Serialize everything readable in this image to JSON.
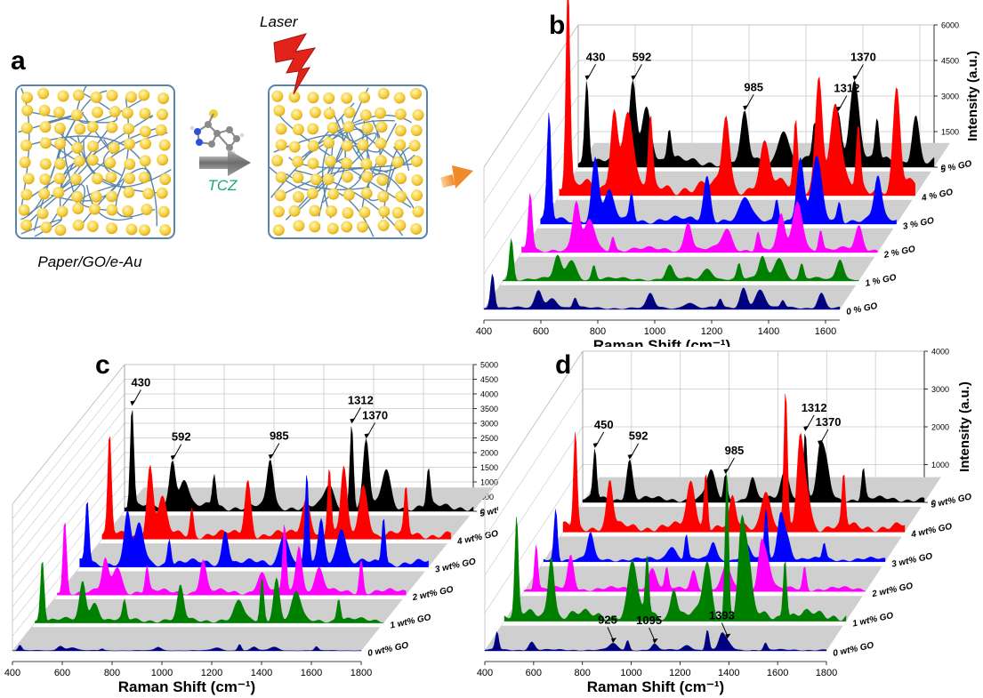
{
  "panel_a": {
    "letter": "a",
    "reagent_label": "TCZ",
    "laser_label": "Laser",
    "substrate_label": "Paper/GO/e-Au",
    "colors": {
      "fiber": "#5a84a9",
      "gold": "#f5cd3a",
      "tcz_label": "#19a866",
      "laser": "#e2231a",
      "arrow": "#7d7d7d",
      "arrow_out": "#f0a04b"
    }
  },
  "panels": {
    "b": {
      "letter": "b",
      "xlabel": "Raman Shift (cm⁻¹)",
      "ylabel": "Intensity (a.u.)"
    },
    "c": {
      "letter": "c",
      "xlabel": "Raman Shift (cm⁻¹)",
      "ylabel": "Intensity (a.u.)"
    },
    "d": {
      "letter": "d",
      "xlabel": "Raman Shift (cm⁻¹)",
      "ylabel": "Intensity (a.u.)"
    }
  },
  "chart_data": [
    {
      "panel": "b",
      "type": "area",
      "title": "",
      "xlabel": "Raman Shift (cm⁻¹)",
      "ylabel": "Intensity (a.u.)",
      "xlim": [
        400,
        1650
      ],
      "x_ticks": [
        400,
        600,
        800,
        1000,
        1200,
        1400,
        1600
      ],
      "ylim": [
        0,
        6000
      ],
      "y_ticks": [
        0,
        1500,
        3000,
        4500,
        6000
      ],
      "series_labels": [
        "5 % GO",
        "4 % GO",
        "3 % GO",
        "2 % GO",
        "1 % GO",
        "0 % GO"
      ],
      "series_colors": [
        "#000000",
        "#ff0000",
        "#0000ff",
        "#ff00ff",
        "#008000",
        "#000080"
      ],
      "series_scale": [
        1.0,
        1.55,
        0.75,
        0.55,
        0.35,
        0.25
      ],
      "peaks": [
        [
          430,
          1.0
        ],
        [
          592,
          0.62
        ],
        [
          640,
          0.4
        ],
        [
          720,
          0.3
        ],
        [
          985,
          0.42
        ],
        [
          1120,
          0.25
        ],
        [
          1230,
          0.3
        ],
        [
          1312,
          0.58
        ],
        [
          1370,
          0.62
        ],
        [
          1450,
          0.3
        ],
        [
          1585,
          0.45
        ]
      ],
      "annotations": [
        {
          "label": "430",
          "x": 430
        },
        {
          "label": "592",
          "x": 592
        },
        {
          "label": "985",
          "x": 985
        },
        {
          "label": "1312",
          "x": 1312
        },
        {
          "label": "1370",
          "x": 1370
        }
      ]
    },
    {
      "panel": "c",
      "type": "area",
      "title": "",
      "xlabel": "Raman Shift (cm⁻¹)",
      "ylabel": "Intensity (a.u.)",
      "xlim": [
        400,
        1800
      ],
      "x_ticks": [
        400,
        600,
        800,
        1000,
        1200,
        1400,
        1600,
        1800
      ],
      "ylim": [
        0,
        5000
      ],
      "y_ticks": [
        0,
        500,
        1000,
        1500,
        2000,
        2500,
        3000,
        3500,
        4000,
        4500,
        5000
      ],
      "series_labels": [
        "5 wt% GO",
        "4 wt% GO",
        "3 wt% GO",
        "2 wt% GO",
        "1 wt% GO",
        "0 wt% GO"
      ],
      "series_colors": [
        "#000000",
        "#ff0000",
        "#0000ff",
        "#ff00ff",
        "#008000",
        "#000080"
      ],
      "series_scale": [
        1.0,
        1.1,
        0.95,
        0.75,
        0.65,
        0.08
      ],
      "peaks": [
        [
          430,
          0.9
        ],
        [
          592,
          0.55
        ],
        [
          640,
          0.35
        ],
        [
          760,
          0.3
        ],
        [
          985,
          0.45
        ],
        [
          1220,
          0.3
        ],
        [
          1312,
          0.85
        ],
        [
          1370,
          0.6
        ],
        [
          1450,
          0.4
        ],
        [
          1620,
          0.45
        ]
      ],
      "annotations": [
        {
          "label": "430",
          "x": 430
        },
        {
          "label": "592",
          "x": 592
        },
        {
          "label": "985",
          "x": 985
        },
        {
          "label": "1312",
          "x": 1312
        },
        {
          "label": "1370",
          "x": 1370
        }
      ]
    },
    {
      "panel": "d",
      "type": "area",
      "title": "",
      "xlabel": "Raman Shift (cm⁻¹)",
      "ylabel": "Intensity (a.u.)",
      "xlim": [
        400,
        1800
      ],
      "x_ticks": [
        400,
        600,
        800,
        1000,
        1200,
        1400,
        1600,
        1800
      ],
      "ylim": [
        0,
        4000
      ],
      "y_ticks": [
        0,
        1000,
        2000,
        3000,
        4000
      ],
      "series_labels": [
        "5 wt% GO",
        "4 wt% GO",
        "3 wt% GO",
        "2 wt% GO",
        "1 wt% GO",
        "0 wt% GO"
      ],
      "series_colors": [
        "#000000",
        "#ff0000",
        "#0000ff",
        "#ff00ff",
        "#008000",
        "#000080"
      ],
      "series_scale": [
        0.75,
        1.2,
        0.55,
        0.6,
        1.4,
        0.2
      ],
      "peaks": [
        [
          450,
          0.85
        ],
        [
          592,
          0.5
        ],
        [
          925,
          0.35
        ],
        [
          985,
          0.45
        ],
        [
          1095,
          0.3
        ],
        [
          1230,
          0.35
        ],
        [
          1312,
          1.0
        ],
        [
          1370,
          0.62
        ],
        [
          1393,
          0.5
        ],
        [
          1550,
          0.4
        ]
      ],
      "annotations": [
        {
          "label": "450",
          "x": 450
        },
        {
          "label": "592",
          "x": 592
        },
        {
          "label": "985",
          "x": 985
        },
        {
          "label": "1312",
          "x": 1312
        },
        {
          "label": "1370",
          "x": 1370
        },
        {
          "label": "925",
          "x": 925,
          "series": 5
        },
        {
          "label": "1095",
          "x": 1095,
          "series": 5
        },
        {
          "label": "1393",
          "x": 1393,
          "series": 5
        }
      ]
    }
  ]
}
